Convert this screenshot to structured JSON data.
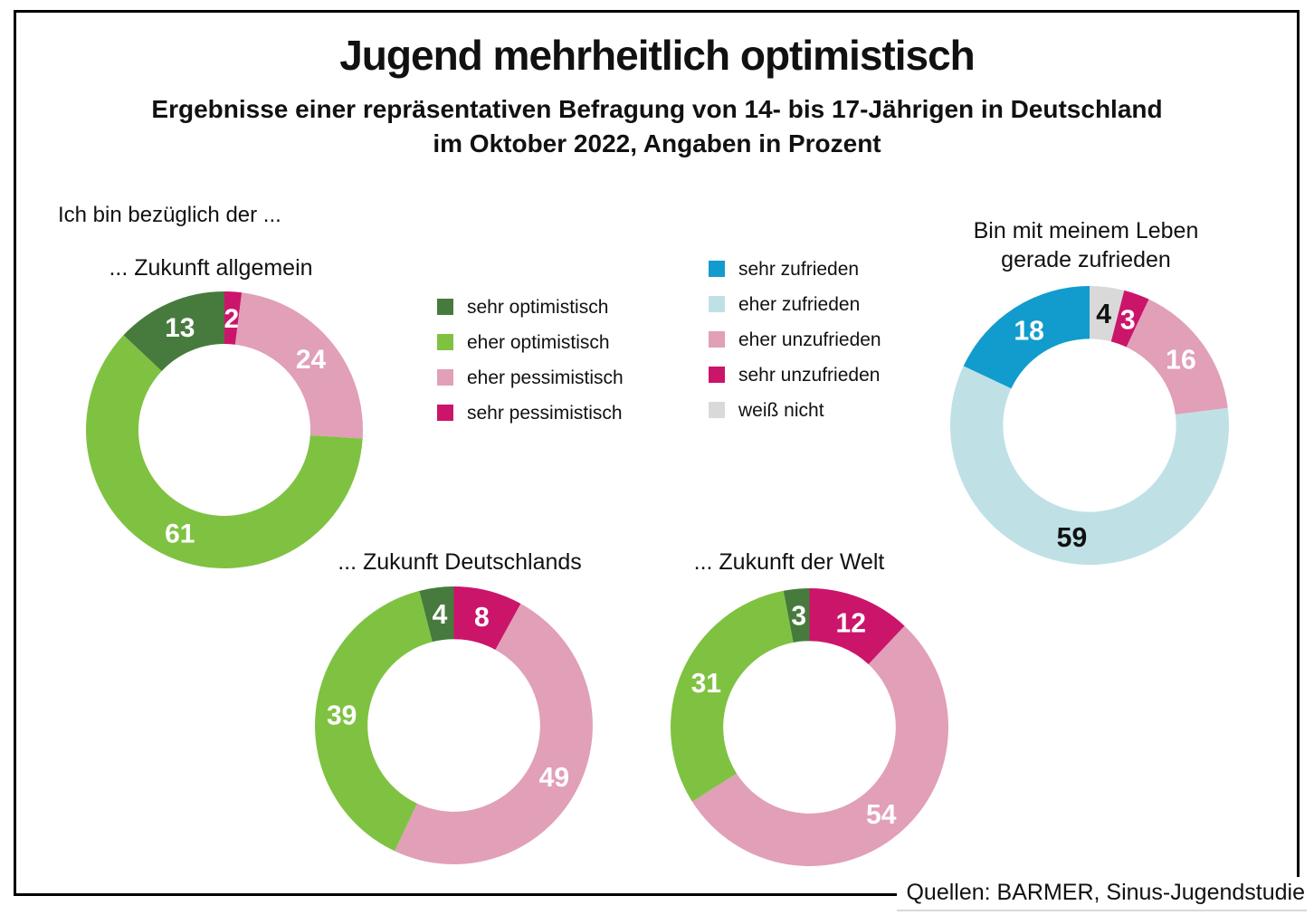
{
  "header": {
    "title": "Jugend mehrheitlich optimistisch",
    "subtitle_line1": "Ergebnisse einer repräsentativen Befragung von 14- bis 17-Jährigen in Deutschland",
    "subtitle_line2": "im Oktober 2022, Angaben in Prozent"
  },
  "intro_label": "Ich bin bezüglich der ...",
  "source": "Quellen: BARMER, Sinus-Jugendstudie",
  "palette": {
    "sehr_optimistisch": "#477b3d",
    "eher_optimistisch": "#7fc242",
    "eher_pessimistisch": "#e19fb8",
    "sehr_pessimistisch": "#cb156b",
    "sehr_zufrieden": "#119ccd",
    "eher_zufrieden": "#bfe1e6",
    "eher_unzufrieden": "#e19fb8",
    "sehr_unzufrieden": "#cb156b",
    "weiss_nicht": "#d9d9d9"
  },
  "legends": {
    "optimism": {
      "items": [
        {
          "label": "sehr optimistisch",
          "color_key": "sehr_optimistisch"
        },
        {
          "label": "eher optimistisch",
          "color_key": "eher_optimistisch"
        },
        {
          "label": "eher pessimistisch",
          "color_key": "eher_pessimistisch"
        },
        {
          "label": "sehr pessimistisch",
          "color_key": "sehr_pessimistisch"
        }
      ]
    },
    "satisfaction": {
      "items": [
        {
          "label": "sehr zufrieden",
          "color_key": "sehr_zufrieden"
        },
        {
          "label": "eher zufrieden",
          "color_key": "eher_zufrieden"
        },
        {
          "label": "eher unzufrieden",
          "color_key": "eher_unzufrieden"
        },
        {
          "label": "sehr unzufrieden",
          "color_key": "sehr_unzufrieden"
        },
        {
          "label": "weiß nicht",
          "color_key": "weiss_nicht"
        }
      ]
    }
  },
  "chart_data": {
    "type": "pie",
    "subtype": "donut",
    "unit": "percent",
    "direction": "clockwise",
    "start_angle_deg": 0,
    "charts": [
      {
        "id": "zukunft-allgemein",
        "title": "... Zukunft allgemein",
        "segments": [
          {
            "label": "sehr pessimistisch",
            "value": 2,
            "color_key": "sehr_pessimistisch",
            "label_color": "#ffffff"
          },
          {
            "label": "eher pessimistisch",
            "value": 24,
            "color_key": "eher_pessimistisch",
            "label_color": "#ffffff"
          },
          {
            "label": "eher optimistisch",
            "value": 61,
            "color_key": "eher_optimistisch",
            "label_color": "#ffffff"
          },
          {
            "label": "sehr optimistisch",
            "value": 13,
            "color_key": "sehr_optimistisch",
            "label_color": "#ffffff"
          }
        ]
      },
      {
        "id": "leben-zufrieden",
        "title": "Bin mit meinem Leben gerade zufrieden",
        "title_lines": [
          "Bin mit meinem Leben",
          "gerade zufrieden"
        ],
        "segments": [
          {
            "label": "weiß nicht",
            "value": 4,
            "color_key": "weiss_nicht",
            "label_color": "#111111"
          },
          {
            "label": "sehr unzufrieden",
            "value": 3,
            "color_key": "sehr_unzufrieden",
            "label_color": "#ffffff"
          },
          {
            "label": "eher unzufrieden",
            "value": 16,
            "color_key": "eher_unzufrieden",
            "label_color": "#ffffff"
          },
          {
            "label": "eher zufrieden",
            "value": 59,
            "color_key": "eher_zufrieden",
            "label_color": "#111111"
          },
          {
            "label": "sehr zufrieden",
            "value": 18,
            "color_key": "sehr_zufrieden",
            "label_color": "#ffffff"
          }
        ]
      },
      {
        "id": "zukunft-deutschlands",
        "title": "... Zukunft Deutschlands",
        "segments": [
          {
            "label": "sehr pessimistisch",
            "value": 8,
            "color_key": "sehr_pessimistisch",
            "label_color": "#ffffff"
          },
          {
            "label": "eher pessimistisch",
            "value": 49,
            "color_key": "eher_pessimistisch",
            "label_color": "#ffffff"
          },
          {
            "label": "eher optimistisch",
            "value": 39,
            "color_key": "eher_optimistisch",
            "label_color": "#ffffff"
          },
          {
            "label": "sehr optimistisch",
            "value": 4,
            "color_key": "sehr_optimistisch",
            "label_color": "#ffffff"
          }
        ]
      },
      {
        "id": "zukunft-der-welt",
        "title": "... Zukunft der Welt",
        "segments": [
          {
            "label": "sehr pessimistisch",
            "value": 12,
            "color_key": "sehr_pessimistisch",
            "label_color": "#ffffff"
          },
          {
            "label": "eher pessimistisch",
            "value": 54,
            "color_key": "eher_pessimistisch",
            "label_color": "#ffffff"
          },
          {
            "label": "eher optimistisch",
            "value": 31,
            "color_key": "eher_optimistisch",
            "label_color": "#ffffff"
          },
          {
            "label": "sehr optimistisch",
            "value": 3,
            "color_key": "sehr_optimistisch",
            "label_color": "#ffffff"
          }
        ]
      }
    ]
  }
}
